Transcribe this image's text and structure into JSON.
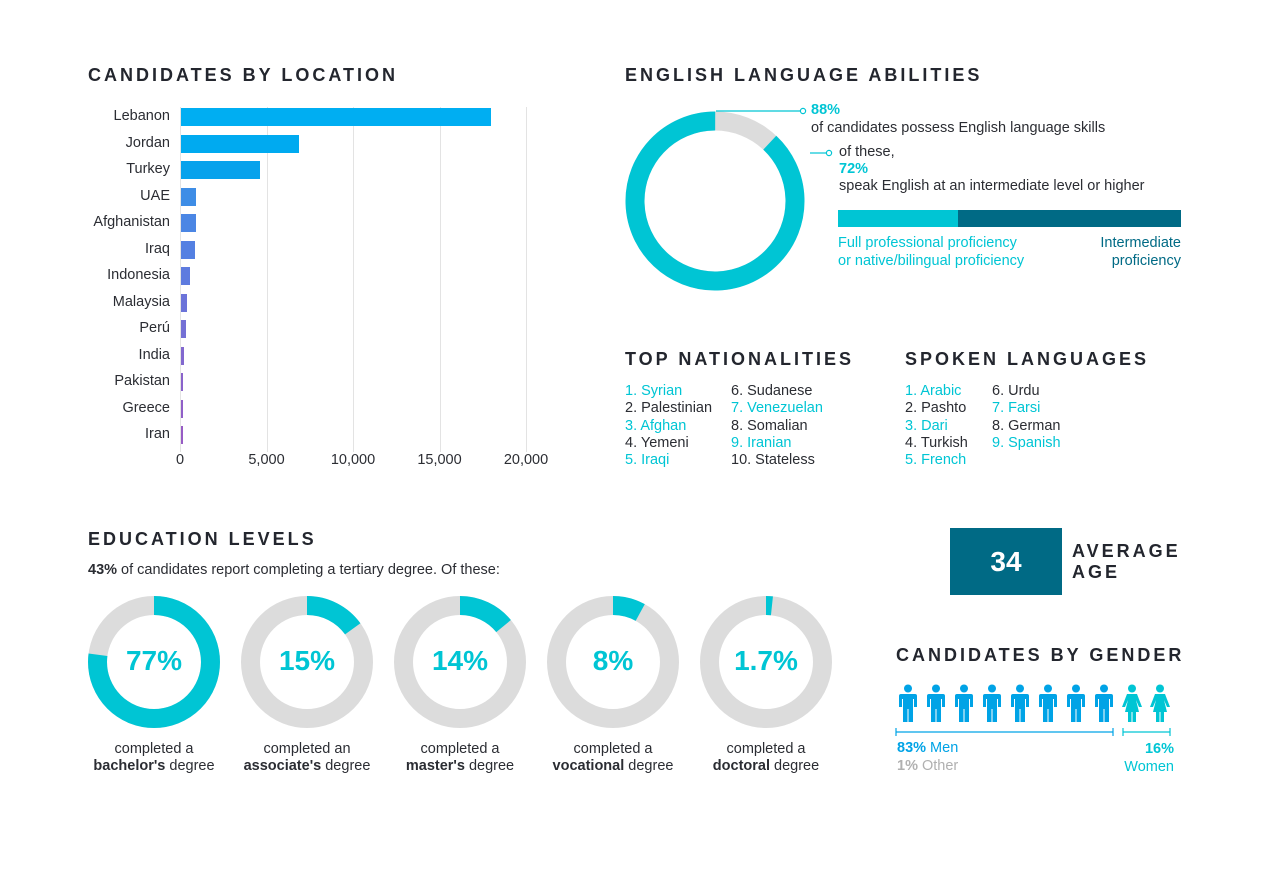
{
  "location": {
    "title": "CANDIDATES BY LOCATION",
    "chart_data": {
      "type": "bar",
      "orientation": "horizontal",
      "categories": [
        "Lebanon",
        "Jordan",
        "Turkey",
        "UAE",
        "Afghanistan",
        "Iraq",
        "Indonesia",
        "Malaysia",
        "Perú",
        "India",
        "Pakistan",
        "Greece",
        "Iran"
      ],
      "values": [
        18000,
        6900,
        4600,
        900,
        900,
        870,
        600,
        400,
        350,
        250,
        200,
        180,
        150
      ],
      "xlim": [
        0,
        20000
      ],
      "xticks": [
        "0",
        "5,000",
        "10,000",
        "15,000",
        "20,000"
      ],
      "colors": [
        "#00aef2",
        "#00aaf0",
        "#08a2ec",
        "#3e8de6",
        "#4b86e4",
        "#5480e2",
        "#5e7bdf",
        "#6b73d9",
        "#7470d5",
        "#8268cf",
        "#8a63cb",
        "#905fc8",
        "#975cc5"
      ],
      "grid": true
    }
  },
  "english": {
    "title": "ENGLISH LANGUAGE ABILITIES",
    "pct1": "88%",
    "text1": "of candidates possess English language skills",
    "text2": "of these,",
    "pct2": "72%",
    "text3": "speak English at an intermediate level or higher",
    "bar_full_label_1": "Full professional proficiency",
    "bar_full_label_2": "or native/bilingual proficiency",
    "bar_int_label_1": "Intermediate",
    "bar_int_label_2": "proficiency",
    "chart_data": {
      "type": "pie",
      "variant": "donut",
      "values": [
        88,
        12
      ],
      "colors": [
        "#00c5d4",
        "#dcdcdc"
      ],
      "bar_split": [
        35,
        65
      ],
      "bar_colors": [
        "#00c5d4",
        "#006a85"
      ]
    }
  },
  "nationalities": {
    "title": "TOP NATIONALITIES",
    "col1": [
      "1. Syrian",
      "2. Palestinian",
      "3. Afghan",
      "4. Yemeni",
      "5. Iraqi"
    ],
    "col2": [
      "6. Sudanese",
      "7. Venezuelan",
      "8. Somalian",
      "9. Iranian",
      "10. Stateless"
    ]
  },
  "languages": {
    "title": "SPOKEN LANGUAGES",
    "col1": [
      "1. Arabic",
      "2. Pashto",
      "3. Dari",
      "4. Turkish",
      "5. French"
    ],
    "col2": [
      "6. Urdu",
      "7. Farsi",
      "8. German",
      "9. Spanish"
    ]
  },
  "education": {
    "title": "EDUCATION LEVELS",
    "intro_bold": "43%",
    "intro_rest": " of candidates report completing a tertiary degree. Of these:",
    "chart_data": {
      "type": "pie",
      "variant": "donut",
      "items": [
        {
          "value": 77,
          "label": "77%",
          "cap1": "completed a",
          "cap_bold": "bachelor's",
          "cap_rest": " degree"
        },
        {
          "value": 15,
          "label": "15%",
          "cap1": "completed an",
          "cap_bold": "associate's",
          "cap_rest": " degree"
        },
        {
          "value": 14,
          "label": "14%",
          "cap1": "completed a",
          "cap_bold": "master's",
          "cap_rest": " degree"
        },
        {
          "value": 8,
          "label": "8%",
          "cap1": "completed a",
          "cap_bold": "vocational",
          "cap_rest": " degree"
        },
        {
          "value": 1.7,
          "label": "1.7%",
          "cap1": "completed a",
          "cap_bold": "doctoral",
          "cap_rest": " degree"
        }
      ],
      "colors": [
        "#00c5d4",
        "#dcdcdc"
      ]
    }
  },
  "age": {
    "value": "34",
    "label1": "AVERAGE",
    "label2": "AGE",
    "box_color": "#006a85"
  },
  "gender": {
    "title": "CANDIDATES BY GENDER",
    "men_pct": "83%",
    "men_label": " Men",
    "other_pct": "1%",
    "other_label": " Other",
    "women_pct": "16%",
    "women_label": "Women",
    "icon_counts": {
      "men": 8,
      "women": 2
    },
    "colors": {
      "men": "#00a3e6",
      "women": "#00c5d4",
      "other": "#b0b0b0"
    }
  }
}
